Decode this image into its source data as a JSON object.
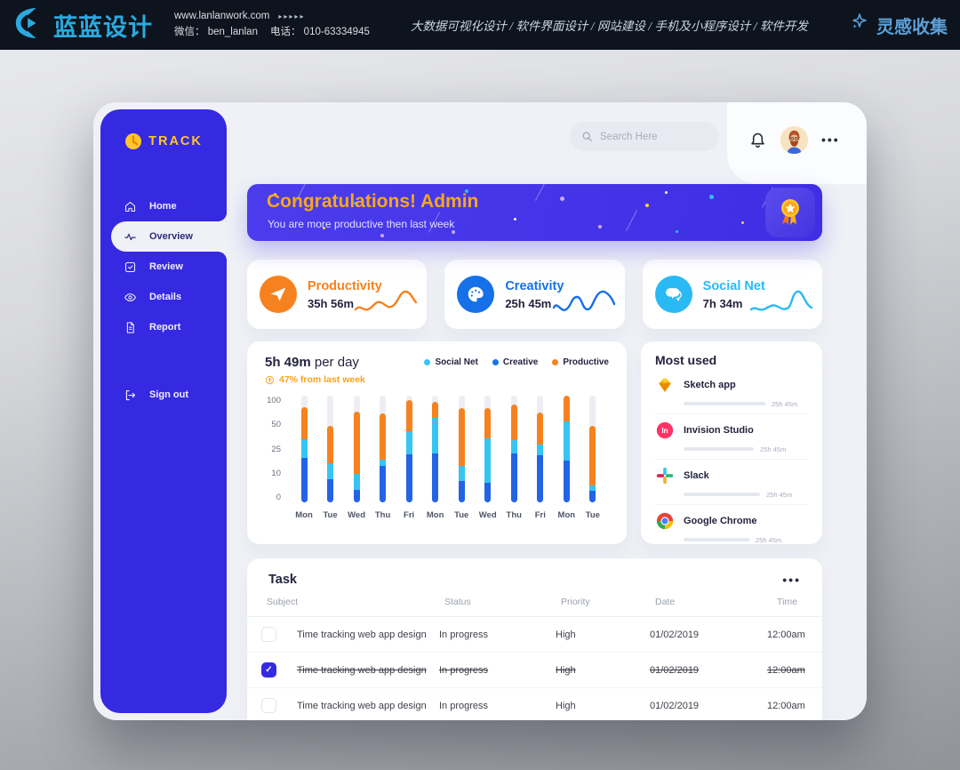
{
  "header": {
    "brand": "蓝蓝设计",
    "website": "www.lanlanwork.com",
    "arrows": "▸▸▸▸▸",
    "wechat": "微信： ben_lanlan",
    "phone": "电话： 010-63334945",
    "services": "大数据可视化设计 / 软件界面设计 / 网站建设 / 手机及小程序设计 / 软件开发",
    "collect": "灵感收集"
  },
  "app": {
    "brand": "TRACK",
    "search_placeholder": "Search Here",
    "more_icon": "•••",
    "menu": [
      {
        "label": "Home",
        "icon": "home-icon",
        "active": false
      },
      {
        "label": "Overview",
        "icon": "overview-icon",
        "active": true
      },
      {
        "label": "Review",
        "icon": "review-icon",
        "active": false
      },
      {
        "label": "Details",
        "icon": "details-icon",
        "active": false
      },
      {
        "label": "Report",
        "icon": "report-icon",
        "active": false
      }
    ],
    "signout": {
      "label": "Sign out",
      "icon": "signout-icon"
    }
  },
  "banner": {
    "title": "Congratulations! Admin",
    "subtitle": "You are more productive then last week"
  },
  "stats": [
    {
      "title": "Productivity",
      "value": "35h 56m",
      "color": "#F5821F",
      "icon": "paper-plane-icon"
    },
    {
      "title": "Creativity",
      "value": "25h 45m",
      "color": "#1670E8",
      "icon": "palette-icon"
    },
    {
      "title": "Social Net",
      "value": "7h 34m",
      "color": "#29BAF5",
      "icon": "chat-icon"
    }
  ],
  "chart_data": {
    "type": "bar",
    "stacked": true,
    "title": "5h 49m per day",
    "title_value": "5h 49m",
    "title_suffix": "per day",
    "change_label": "47% from last week",
    "ylim": [
      0,
      100
    ],
    "y_ticks": [
      100,
      50,
      25,
      10,
      0
    ],
    "grid": false,
    "legend_position": "top-right",
    "categories": [
      "Mon",
      "Tue",
      "Wed",
      "Thu",
      "Fri",
      "Mon",
      "Tue",
      "Wed",
      "Thu",
      "Fri",
      "Mon",
      "Tue"
    ],
    "series": [
      {
        "name": "Creative",
        "color": "#2264E5",
        "values": [
          42,
          22,
          12,
          34,
          45,
          46,
          20,
          18,
          46,
          44,
          39,
          11
        ]
      },
      {
        "name": "Social Net",
        "color": "#36C5F1",
        "values": [
          17,
          15,
          15,
          6,
          22,
          33,
          14,
          42,
          12,
          10,
          37,
          5
        ]
      },
      {
        "name": "Productive",
        "color": "#F5821E",
        "values": [
          30,
          35,
          58,
          43,
          29,
          15,
          54,
          28,
          34,
          30,
          24,
          56
        ]
      }
    ],
    "legend": [
      {
        "label": "Social Net",
        "color": "#36C5F1"
      },
      {
        "label": "Creative",
        "color": "#1773E9"
      },
      {
        "label": "Productive",
        "color": "#F5821E"
      }
    ]
  },
  "most_used": {
    "title": "Most used",
    "items": [
      {
        "name": "Sketch app",
        "value": "25h 45m",
        "percent": 92,
        "icon": "sketch-icon"
      },
      {
        "name": "Invision Studio",
        "value": "25h 45m",
        "percent": 79,
        "icon": "invision-icon"
      },
      {
        "name": "Slack",
        "value": "25h 45m",
        "percent": 86,
        "icon": "slack-icon"
      },
      {
        "name": "Google Chrome",
        "value": "25h 45m",
        "percent": 74,
        "icon": "chrome-icon"
      }
    ]
  },
  "task": {
    "title": "Task",
    "more_icon": "•••",
    "columns": [
      "Subject",
      "Status",
      "Priority",
      "Date",
      "Time"
    ],
    "rows": [
      {
        "subject": "Time tracking web app design",
        "status": "In progress",
        "priority": "High",
        "date": "01/02/2019",
        "time": "12:00am",
        "checked": false,
        "completed": false
      },
      {
        "subject": "Time tracking web app design",
        "status": "In progress",
        "priority": "High",
        "date": "01/02/2019",
        "time": "12:00am",
        "checked": true,
        "completed": true
      },
      {
        "subject": "Time tracking web app design",
        "status": "In progress",
        "priority": "High",
        "date": "01/02/2019",
        "time": "12:00am",
        "checked": false,
        "completed": false
      }
    ]
  }
}
